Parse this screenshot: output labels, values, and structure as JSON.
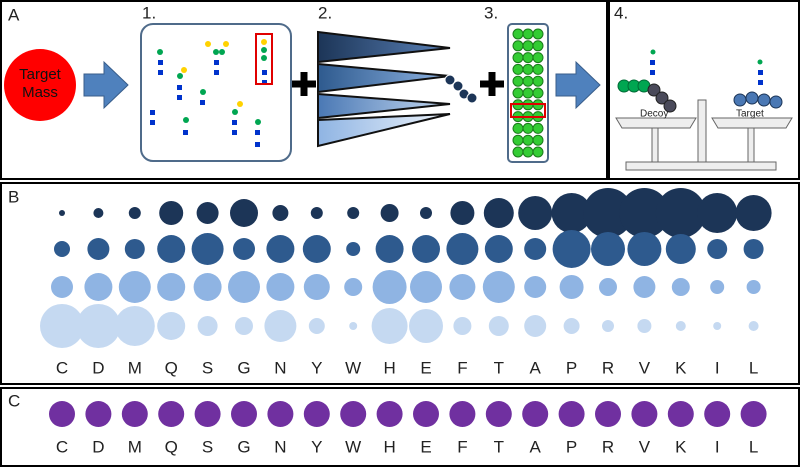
{
  "panel_a": {
    "label": "A",
    "step_labels": [
      "1.",
      "2.",
      "3.",
      "4."
    ],
    "target_mass": "Target Mass",
    "decoy": "Decoy",
    "target": "Target"
  },
  "panel_b": {
    "label": "B",
    "categories": [
      "C",
      "D",
      "M",
      "Q",
      "S",
      "G",
      "N",
      "Y",
      "W",
      "H",
      "E",
      "F",
      "T",
      "A",
      "P",
      "R",
      "V",
      "K",
      "I",
      "L"
    ],
    "rows": [
      {
        "color": "#1c3557",
        "sizes": [
          3,
          5,
          6,
          12,
          11,
          14,
          8,
          6,
          6,
          9,
          6,
          12,
          15,
          17,
          20,
          25,
          25,
          25,
          20,
          18
        ]
      },
      {
        "color": "#2e5a8e",
        "sizes": [
          8,
          11,
          10,
          14,
          16,
          11,
          14,
          14,
          7,
          14,
          14,
          16,
          14,
          11,
          19,
          17,
          17,
          15,
          10,
          10
        ]
      },
      {
        "color": "#8fb4e3",
        "sizes": [
          11,
          14,
          16,
          14,
          14,
          16,
          14,
          13,
          9,
          17,
          16,
          13,
          16,
          11,
          12,
          9,
          11,
          9,
          7,
          7
        ]
      },
      {
        "color": "#c5d9f1",
        "sizes": [
          22,
          22,
          20,
          14,
          10,
          9,
          16,
          8,
          4,
          18,
          17,
          9,
          10,
          11,
          8,
          6,
          7,
          5,
          4,
          5
        ]
      }
    ]
  },
  "panel_c": {
    "label": "C",
    "color": "#7030a0"
  }
}
